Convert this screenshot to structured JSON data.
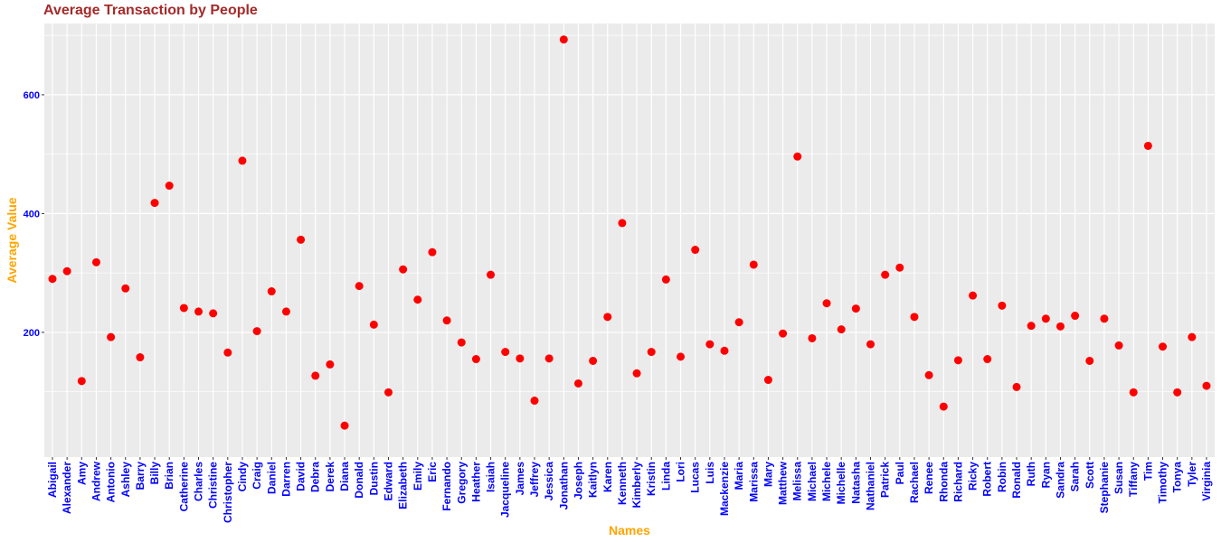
{
  "chart_data": {
    "type": "scatter",
    "title": "Average Transaction by People",
    "xlabel": "Names",
    "ylabel": "Average Value",
    "y_ticks": [
      200,
      400,
      600
    ],
    "ylim": [
      -10,
      720
    ],
    "grid": true,
    "colors": {
      "title": "#a52a2a",
      "axis_title": "#ffa500",
      "tick_label": "#0000ff",
      "point": "#ff0000",
      "panel": "#ebebeb",
      "grid": "#ffffff"
    },
    "categories": [
      "Abigail",
      "Alexander",
      "Amy",
      "Andrew",
      "Antonio",
      "Ashley",
      "Barry",
      "Billy",
      "Brian",
      "Catherine",
      "Charles",
      "Christine",
      "Christopher",
      "Cindy",
      "Craig",
      "Daniel",
      "Darren",
      "David",
      "Debra",
      "Derek",
      "Diana",
      "Donald",
      "Dustin",
      "Edward",
      "Elizabeth",
      "Emily",
      "Eric",
      "Fernando",
      "Gregory",
      "Heather",
      "Isaiah",
      "Jacqueline",
      "James",
      "Jeffrey",
      "Jessica",
      "Jonathan",
      "Joseph",
      "Kaitlyn",
      "Karen",
      "Kenneth",
      "Kimberly",
      "Kristin",
      "Linda",
      "Lori",
      "Lucas",
      "Luis",
      "Mackenzie",
      "Maria",
      "Marissa",
      "Mary",
      "Matthew",
      "Melissa",
      "Michael",
      "Michele",
      "Michelle",
      "Natasha",
      "Nathaniel",
      "Patrick",
      "Paul",
      "Rachael",
      "Renee",
      "Rhonda",
      "Richard",
      "Ricky",
      "Robert",
      "Robin",
      "Ronald",
      "Ruth",
      "Ryan",
      "Sandra",
      "Sarah",
      "Scott",
      "Stephanie",
      "Susan",
      "Tiffany",
      "Tim",
      "Timothy",
      "Tonya",
      "Tyler",
      "Virginia"
    ],
    "values": [
      290,
      303,
      118,
      318,
      192,
      274,
      158,
      418,
      447,
      241,
      235,
      232,
      166,
      489,
      202,
      269,
      235,
      356,
      127,
      146,
      43,
      278,
      213,
      99,
      306,
      255,
      335,
      220,
      183,
      155,
      297,
      167,
      156,
      85,
      156,
      693,
      114,
      152,
      226,
      384,
      131,
      167,
      289,
      159,
      339,
      180,
      169,
      217,
      314,
      120,
      198,
      496,
      190,
      249,
      205,
      240,
      180,
      297,
      309,
      226,
      128,
      75,
      153,
      262,
      155,
      245,
      108,
      211,
      223,
      210,
      228,
      152,
      223,
      178,
      99,
      514,
      176,
      99,
      192,
      110
    ]
  }
}
